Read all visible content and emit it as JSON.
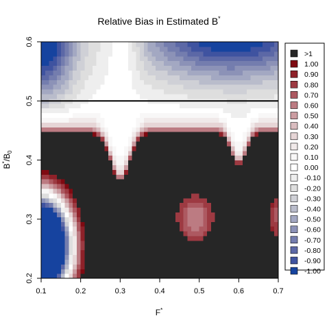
{
  "chart_data": {
    "type": "heatmap",
    "title": "Relative Bias in Estimated B",
    "title_sup": "*",
    "xlabel": "F",
    "xlabel_sup": "*",
    "ylabel": "B",
    "ylabel_sup": "*",
    "ylabel_suffix": "/B",
    "ylabel_sub": "0",
    "xlim": [
      0.1,
      0.7
    ],
    "ylim": [
      0.2,
      0.6
    ],
    "x_ticks": [
      "0.1",
      "0.2",
      "0.3",
      "0.4",
      "0.5",
      "0.6",
      "0.7"
    ],
    "y_ticks": [
      "0.2",
      "0.3",
      "0.4",
      "0.5",
      "0.6"
    ],
    "reference_line": {
      "orientation": "horizontal",
      "y": 0.5,
      "color": "#000000"
    },
    "grid": false,
    "legend_position": "right",
    "legend": [
      {
        "label": ">1",
        "value": 1.1,
        "color": "#262626"
      },
      {
        "label": "1.00",
        "value": 1.0,
        "color": "#7f0a12"
      },
      {
        "label": "0.90",
        "value": 0.9,
        "color": "#8e2129"
      },
      {
        "label": "0.80",
        "value": 0.8,
        "color": "#9d3a42"
      },
      {
        "label": "0.70",
        "value": 0.7,
        "color": "#ad5961"
      },
      {
        "label": "0.60",
        "value": 0.6,
        "color": "#bc7b82"
      },
      {
        "label": "0.50",
        "value": 0.5,
        "color": "#cb9ca1"
      },
      {
        "label": "0.40",
        "value": 0.4,
        "color": "#d9bcbf"
      },
      {
        "label": "0.30",
        "value": 0.3,
        "color": "#e6d5d6"
      },
      {
        "label": "0.20",
        "value": 0.2,
        "color": "#f0e9e9"
      },
      {
        "label": "0.10",
        "value": 0.1,
        "color": "#f8f7f7"
      },
      {
        "label": "0.00",
        "value": 0.0,
        "color": "#ffffff"
      },
      {
        "label": "-0.10",
        "value": -0.1,
        "color": "#eeeeee"
      },
      {
        "label": "-0.20",
        "value": -0.2,
        "color": "#dedede"
      },
      {
        "label": "-0.30",
        "value": -0.3,
        "color": "#cfd0d6"
      },
      {
        "label": "-0.40",
        "value": -0.4,
        "color": "#b9bccb"
      },
      {
        "label": "-0.50",
        "value": -0.5,
        "color": "#a3a8c2"
      },
      {
        "label": "-0.60",
        "value": -0.6,
        "color": "#8c92b7"
      },
      {
        "label": "-0.70",
        "value": -0.7,
        "color": "#747dae"
      },
      {
        "label": "-0.80",
        "value": -0.8,
        "color": "#5c68a6"
      },
      {
        "label": "-0.90",
        "value": -0.9,
        "color": "#3f53a0"
      },
      {
        "label": "-1.00",
        "value": -1.0,
        "color": "#16439f"
      }
    ],
    "regions": [
      {
        "name": "dark-band",
        "level": ">1",
        "x_range": [
          0.1,
          0.7
        ],
        "y_range": [
          0.2,
          0.445
        ]
      },
      {
        "name": "negative-bias-bottom-left",
        "level": "-1.00",
        "x_range": [
          0.1,
          0.2
        ],
        "y_range": [
          0.2,
          0.345
        ]
      },
      {
        "name": "positive-bias-blob-center",
        "level": "0.70",
        "x_range": [
          0.44,
          0.55
        ],
        "y_range": [
          0.25,
          0.34
        ]
      },
      {
        "name": "negative-bias-top-left",
        "level": "-1.00",
        "x_range": [
          0.1,
          0.2
        ],
        "y_range": [
          0.54,
          0.6
        ]
      },
      {
        "name": "negative-bias-top-right",
        "level": "-1.00",
        "x_range": [
          0.38,
          0.7
        ],
        "y_range": [
          0.54,
          0.6
        ]
      },
      {
        "name": "white-column",
        "level": "0.00",
        "x_range": [
          0.27,
          0.33
        ],
        "y_range": [
          0.5,
          0.6
        ]
      },
      {
        "name": "trough-1",
        "level": "1.00",
        "x_range": [
          0.25,
          0.35
        ],
        "y_range": [
          0.36,
          0.445
        ]
      },
      {
        "name": "trough-2",
        "level": "1.00",
        "x_range": [
          0.55,
          0.65
        ],
        "y_range": [
          0.39,
          0.445
        ]
      }
    ]
  }
}
